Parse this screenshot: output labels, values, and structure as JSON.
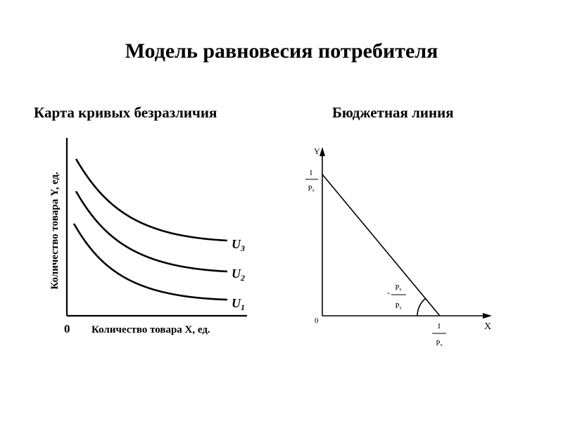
{
  "title": "Модель равновесия потребителя",
  "left_panel": {
    "heading": "Карта кривых безразличия",
    "y_axis_label": "Количество товара Y, ед.",
    "x_axis_label": "Количество товара X, ед.",
    "origin": "0",
    "curves": [
      {
        "letter": "U",
        "index": "3"
      },
      {
        "letter": "U",
        "index": "2"
      },
      {
        "letter": "U",
        "index": "1"
      }
    ]
  },
  "right_panel": {
    "heading": "Бюджетная линия",
    "y_axis": "Y",
    "x_axis": "X",
    "origin": "0",
    "intercept_y": {
      "num": "I",
      "den": "Pᵧ"
    },
    "intercept_x": {
      "num": "I",
      "den": "Pₓ"
    },
    "slope": {
      "sign": "-",
      "num": "Pₓ",
      "den": "Pᵧ"
    }
  }
}
